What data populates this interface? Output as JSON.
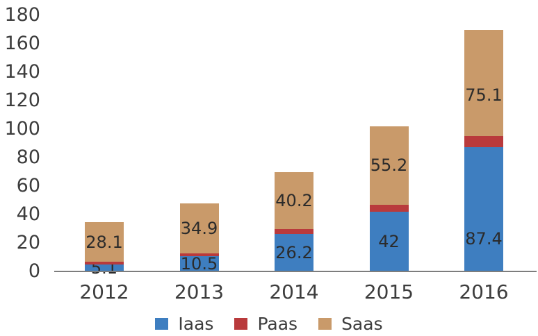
{
  "chart_data": {
    "type": "bar",
    "stacked": true,
    "title": "",
    "categories": [
      "2012",
      "2013",
      "2014",
      "2015",
      "2016"
    ],
    "series": [
      {
        "name": "Iaas",
        "color": "#3e7ec0",
        "values": [
          5.1,
          10.5,
          26.2,
          42,
          87.4
        ],
        "data_labels": [
          "5.1",
          "10.5",
          "26.2",
          "42",
          "87.4"
        ]
      },
      {
        "name": "Paas",
        "color": "#b93a3c",
        "values": [
          1.5,
          2.4,
          3.4,
          4.9,
          7.5
        ],
        "data_labels": [
          "",
          "",
          "",
          "",
          ""
        ],
        "values_estimated_from_pixels": true
      },
      {
        "name": "Saas",
        "color": "#c99a6a",
        "values": [
          28.1,
          34.9,
          40.2,
          55.2,
          75.1
        ],
        "data_labels": [
          "28.1",
          "34.9",
          "40.2",
          "55.2",
          "75.1"
        ]
      }
    ],
    "xlabel": "",
    "ylabel": "",
    "ylim": [
      0,
      180
    ],
    "yticks": [
      0,
      20,
      40,
      60,
      80,
      100,
      120,
      140,
      160,
      180
    ],
    "grid": false,
    "legend_position": "bottom",
    "legend": [
      "Iaas",
      "Paas",
      "Saas"
    ],
    "layout": {
      "label_y_offsets": {
        "Iaas": [
          0,
          0,
          0,
          0,
          43
        ],
        "Paas": [
          0,
          0,
          0,
          0,
          0
        ],
        "Saas": [
          0,
          0,
          0,
          0,
          18
        ]
      }
    }
  },
  "colors": {
    "background": "#ffffff",
    "axis_line": "#7d7d7d",
    "tick_text": "#3d3d3d",
    "data_label_text": "#2b2b2b"
  }
}
